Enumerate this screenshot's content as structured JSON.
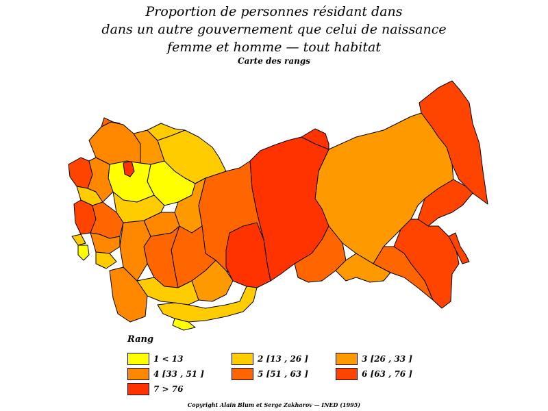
{
  "title": {
    "line1": "Proportion de personnes résidant dans",
    "line2": "dans un autre gouvernement que celui de naissance",
    "line3": "femme et homme — tout habitat"
  },
  "subtitle": "Carte des rangs",
  "colors": {
    "rank1": "#ffff00",
    "rank2": "#ffcc00",
    "rank3": "#ff9900",
    "rank4": "#ff8800",
    "rank5": "#ff6600",
    "rank6": "#ff4400",
    "rank7": "#ff3300",
    "border": "#000000"
  },
  "legend": {
    "title": "Rang",
    "items": [
      {
        "label": "1  <  13",
        "color": "#ffff00"
      },
      {
        "label": "2  [13 , 26 ]",
        "color": "#ffcc00"
      },
      {
        "label": "3  [26 , 33 ]",
        "color": "#ff9900"
      },
      {
        "label": "4  [33 , 51 ]",
        "color": "#ff8800"
      },
      {
        "label": "5  [51 , 63 ]",
        "color": "#ff6600"
      },
      {
        "label": "6  [63 , 76 ]",
        "color": "#ff4400"
      },
      {
        "label": "7  >  76",
        "color": "#ff3300"
      }
    ]
  },
  "copyright": "Copyright Alain Blum et Serge Zakharov — INED (1995)"
}
